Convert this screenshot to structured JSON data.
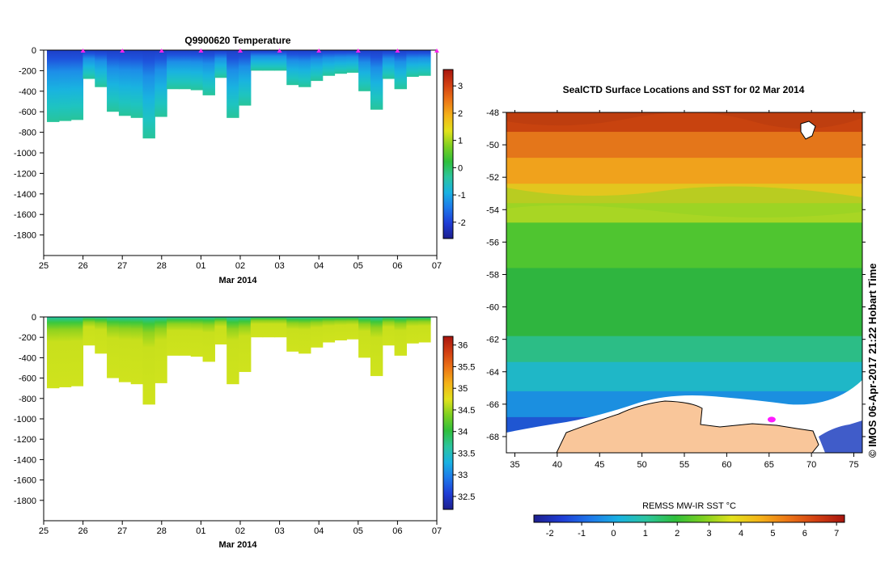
{
  "chart_data": [
    {
      "type": "heatmap",
      "title": "Q9900620  Temperature",
      "xlabel": "Mar 2014",
      "ylabel": "",
      "x_ticks": [
        "25",
        "26",
        "27",
        "28",
        "01",
        "02",
        "03",
        "04",
        "05",
        "06",
        "07"
      ],
      "y_ticks": [
        "0",
        "-200",
        "-400",
        "-600",
        "-800",
        "-1000",
        "-1200",
        "-1400",
        "-1600",
        "-1800"
      ],
      "ylim": [
        -2000,
        0
      ],
      "x_range_days": [
        0,
        10
      ],
      "cast_markers_days": [
        1,
        2,
        3,
        4,
        5,
        6,
        7,
        8,
        9,
        10
      ],
      "colorbar": {
        "ticks": [
          "3",
          "2",
          "1",
          "0",
          "-1",
          "-2"
        ],
        "min": -2.6,
        "max": 3.6,
        "colors": [
          "#1d1f8e",
          "#1f3dd6",
          "#1e78ea",
          "#19b2e2",
          "#2cc59e",
          "#2fbf3c",
          "#7dd020",
          "#e2e21c",
          "#f4b318",
          "#ec7516",
          "#d23f12",
          "#a8150e"
        ]
      },
      "profile_depths": [
        700,
        690,
        680,
        280,
        360,
        600,
        640,
        660,
        860,
        650,
        380,
        380,
        390,
        440,
        270,
        660,
        540,
        200,
        200,
        200,
        340,
        360,
        300,
        250,
        230,
        220,
        400,
        580,
        280,
        380,
        260,
        250
      ]
    },
    {
      "type": "heatmap",
      "title": "",
      "xlabel": "Mar 2014",
      "ylabel": "",
      "x_ticks": [
        "25",
        "26",
        "27",
        "28",
        "01",
        "02",
        "03",
        "04",
        "05",
        "06",
        "07"
      ],
      "y_ticks": [
        "0",
        "-200",
        "-400",
        "-600",
        "-800",
        "-1000",
        "-1200",
        "-1400",
        "-1600",
        "-1800"
      ],
      "ylim": [
        -2000,
        0
      ],
      "x_range_days": [
        0,
        10
      ],
      "colorbar": {
        "ticks": [
          "36",
          "35.5",
          "35",
          "34.5",
          "34",
          "33.5",
          "33",
          "32.5"
        ],
        "min": 32.2,
        "max": 36.2,
        "colors": [
          "#1d1f8e",
          "#1f3dd6",
          "#1e78ea",
          "#19b2e2",
          "#2cc59e",
          "#2fbf3c",
          "#7dd020",
          "#e2e21c",
          "#f4b318",
          "#ec7516",
          "#d23f12",
          "#a8150e"
        ]
      },
      "profile_depths": [
        700,
        690,
        680,
        280,
        360,
        600,
        640,
        660,
        860,
        650,
        380,
        380,
        390,
        440,
        270,
        660,
        540,
        200,
        200,
        200,
        340,
        360,
        300,
        250,
        230,
        220,
        400,
        580,
        280,
        380,
        260,
        250
      ]
    },
    {
      "type": "heatmap",
      "title": "SealCTD Surface Locations and SST for 02 Mar 2014",
      "xlabel": "",
      "ylabel": "",
      "x_ticks": [
        "35",
        "40",
        "45",
        "50",
        "55",
        "60",
        "65",
        "70",
        "75"
      ],
      "y_ticks": [
        "-48",
        "-50",
        "-52",
        "-54",
        "-56",
        "-58",
        "-60",
        "-62",
        "-64",
        "-66",
        "-68"
      ],
      "xlim": [
        34,
        76
      ],
      "ylim": [
        -69,
        -48
      ],
      "colorbar": {
        "label": "REMSS MW-IR SST °C",
        "ticks": [
          "-2",
          "-1",
          "0",
          "1",
          "2",
          "3",
          "4",
          "5",
          "6",
          "7"
        ],
        "min": -2.5,
        "max": 7.25,
        "colors": [
          "#1d1f8e",
          "#1f3dd6",
          "#1e78ea",
          "#19b2e2",
          "#2cc59e",
          "#2fbf3c",
          "#7dd020",
          "#e2e21c",
          "#f4b318",
          "#ec7516",
          "#d23f12",
          "#a8150e"
        ]
      },
      "sst_bands": [
        {
          "lat_top": -48,
          "lat_bottom": -49.2,
          "color": "#c8430f"
        },
        {
          "lat_top": -49.2,
          "lat_bottom": -50.8,
          "color": "#e4761a"
        },
        {
          "lat_top": -50.8,
          "lat_bottom": -52.4,
          "color": "#f0a21c"
        },
        {
          "lat_top": -52.4,
          "lat_bottom": -53.6,
          "color": "#e3c61e"
        },
        {
          "lat_top": -53.6,
          "lat_bottom": -54.8,
          "color": "#a8d624"
        },
        {
          "lat_top": -54.8,
          "lat_bottom": -57.6,
          "color": "#4fc530"
        },
        {
          "lat_top": -57.6,
          "lat_bottom": -61.8,
          "color": "#2fb53f"
        },
        {
          "lat_top": -61.8,
          "lat_bottom": -63.4,
          "color": "#2cbd86"
        },
        {
          "lat_top": -63.4,
          "lat_bottom": -65.2,
          "color": "#1fb7c7"
        },
        {
          "lat_top": -65.2,
          "lat_bottom": -66.8,
          "color": "#1b8fe0"
        },
        {
          "lat_top": -66.8,
          "lat_bottom": -69,
          "color": "#1f56d2"
        }
      ],
      "land_color": "#f9c69a",
      "seal_locations": [
        {
          "lon": 65.3,
          "lat": -66.95
        }
      ],
      "credit": "©  IMOS 06-Apr-2017 21:22 Hobart Time"
    }
  ]
}
